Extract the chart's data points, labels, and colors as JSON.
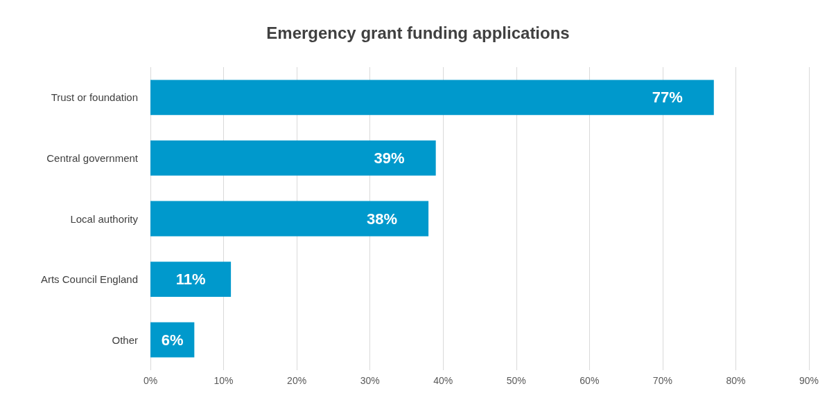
{
  "chart_data": {
    "type": "bar",
    "orientation": "horizontal",
    "title": "Emergency grant funding applications",
    "categories": [
      "Trust or foundation",
      "Central government",
      "Local authority",
      "Arts Council England",
      "Other"
    ],
    "values": [
      77,
      39,
      38,
      11,
      6
    ],
    "value_labels": [
      "77%",
      "39%",
      "38%",
      "11%",
      "6%"
    ],
    "color": "#0099cc",
    "xlim": [
      0,
      90
    ],
    "xticks": [
      {
        "value": 0,
        "label": "0%"
      },
      {
        "value": 10,
        "label": "10%"
      },
      {
        "value": 20,
        "label": "20%"
      },
      {
        "value": 30,
        "label": "30%"
      },
      {
        "value": 40,
        "label": "40%"
      },
      {
        "value": 50,
        "label": "50%"
      },
      {
        "value": 60,
        "label": "60%"
      },
      {
        "value": 70,
        "label": "70%"
      },
      {
        "value": 80,
        "label": "80%"
      },
      {
        "value": 90,
        "label": "90%"
      }
    ],
    "grid": "x"
  }
}
